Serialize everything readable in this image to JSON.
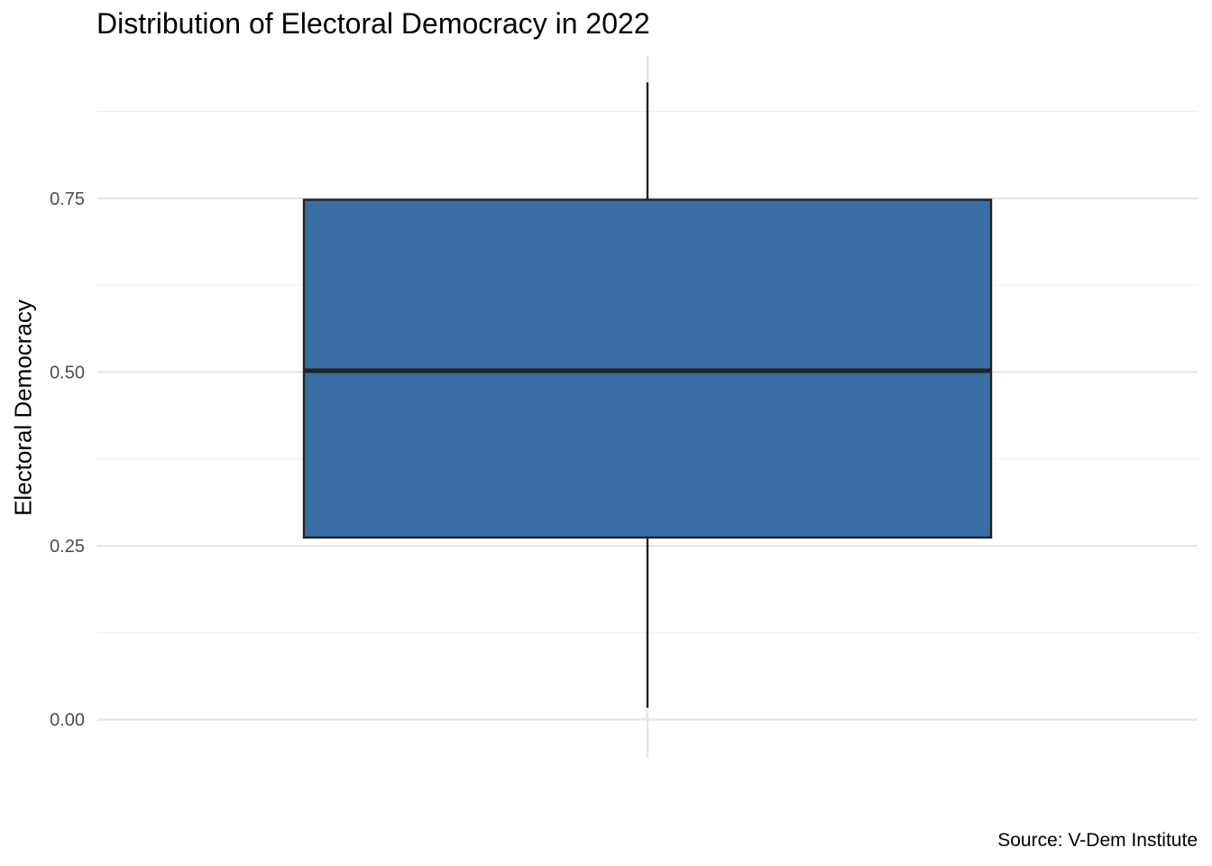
{
  "chart_data": {
    "type": "boxplot",
    "title": "Distribution of Electoral Democracy in 2022",
    "ylabel": "Electoral Democracy",
    "xlabel": "",
    "caption": "Source: V-Dem Institute",
    "ylim": [
      -0.055,
      0.955
    ],
    "yticks": [
      0.0,
      0.25,
      0.5,
      0.75
    ],
    "ytick_labels": [
      "0.00",
      "0.25",
      "0.50",
      "0.75"
    ],
    "y_minor_ticks": [
      0.125,
      0.375,
      0.625,
      0.875
    ],
    "grid": true,
    "legend": "none",
    "box": {
      "whisker_low": 0.017,
      "q1": 0.262,
      "median": 0.502,
      "q3": 0.748,
      "whisker_high": 0.917
    },
    "colors": {
      "box_fill": "#3a6ea5",
      "box_outline": "#222222",
      "grid_major": "#e6e6e6",
      "grid_minor": "#f0f0f0"
    }
  }
}
